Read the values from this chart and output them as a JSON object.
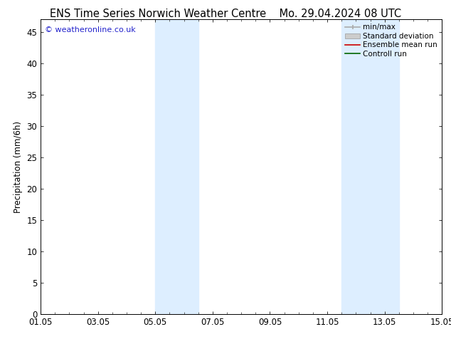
{
  "title_left": "ENS Time Series Norwich Weather Centre",
  "title_right": "Mo. 29.04.2024 08 UTC",
  "ylabel": "Precipitation (mm/6h)",
  "xlim": [
    0,
    14
  ],
  "ylim": [
    0,
    47
  ],
  "yticks": [
    0,
    5,
    10,
    15,
    20,
    25,
    30,
    35,
    40,
    45
  ],
  "xtick_labels": [
    "01.05",
    "03.05",
    "05.05",
    "07.05",
    "09.05",
    "11.05",
    "13.05",
    "15.05"
  ],
  "xtick_positions": [
    0,
    2,
    4,
    6,
    8,
    10,
    12,
    14
  ],
  "watermark": "© weatheronline.co.uk",
  "watermark_color": "#2222cc",
  "background_color": "#ffffff",
  "plot_bg_color": "#ffffff",
  "shaded_bands": [
    {
      "x_start": 4.0,
      "x_end": 5.5
    },
    {
      "x_start": 10.5,
      "x_end": 12.5
    }
  ],
  "band_color": "#ddeeff",
  "title_fontsize": 10.5,
  "tick_fontsize": 8.5,
  "ylabel_fontsize": 8.5,
  "legend_fontsize": 7.5,
  "watermark_fontsize": 8.0
}
